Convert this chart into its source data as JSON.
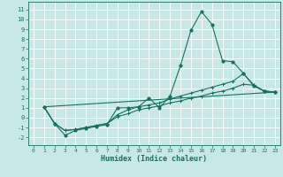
{
  "xlabel": "Humidex (Indice chaleur)",
  "bg_color": "#c8e8e8",
  "grid_color": "#aad4d4",
  "line_color": "#1a7060",
  "xlim": [
    -0.5,
    23.5
  ],
  "ylim": [
    -2.8,
    11.8
  ],
  "xticks": [
    0,
    1,
    2,
    3,
    4,
    5,
    6,
    7,
    8,
    9,
    10,
    11,
    12,
    13,
    14,
    15,
    16,
    17,
    18,
    19,
    20,
    21,
    22,
    23
  ],
  "yticks": [
    -2,
    -1,
    0,
    1,
    2,
    3,
    4,
    5,
    6,
    7,
    8,
    9,
    10,
    11
  ],
  "curve1_x": [
    1,
    2,
    3,
    4,
    5,
    6,
    7,
    8,
    9,
    10,
    11,
    12,
    13,
    14,
    15,
    16,
    17,
    18,
    19,
    20,
    21,
    22,
    23
  ],
  "curve1_y": [
    1.1,
    -0.6,
    -1.8,
    -1.3,
    -1.1,
    -0.9,
    -0.7,
    1.0,
    1.0,
    1.1,
    2.0,
    1.0,
    2.2,
    5.3,
    8.9,
    10.8,
    9.5,
    5.8,
    5.7,
    4.5,
    3.2,
    2.7,
    2.6
  ],
  "curve2_x": [
    1,
    2,
    3,
    4,
    5,
    6,
    7,
    8,
    9,
    10,
    11,
    12,
    13,
    14,
    15,
    16,
    17,
    18,
    19,
    20,
    21,
    22,
    23
  ],
  "curve2_y": [
    1.1,
    -0.6,
    -1.3,
    -1.2,
    -1.0,
    -0.8,
    -0.6,
    0.3,
    0.8,
    1.1,
    1.3,
    1.5,
    1.9,
    2.2,
    2.5,
    2.8,
    3.1,
    3.4,
    3.7,
    4.5,
    3.3,
    2.7,
    2.6
  ],
  "curve3_x": [
    1,
    2,
    3,
    4,
    5,
    6,
    7,
    8,
    9,
    10,
    11,
    12,
    13,
    14,
    15,
    16,
    17,
    18,
    19,
    20,
    21,
    22,
    23
  ],
  "curve3_y": [
    1.1,
    -0.6,
    -1.3,
    -1.2,
    -1.0,
    -0.8,
    -0.6,
    0.1,
    0.4,
    0.8,
    1.0,
    1.2,
    1.5,
    1.7,
    2.0,
    2.2,
    2.5,
    2.7,
    3.0,
    3.4,
    3.3,
    2.7,
    2.6
  ],
  "curve4_x": [
    1,
    23
  ],
  "curve4_y": [
    1.1,
    2.6
  ]
}
